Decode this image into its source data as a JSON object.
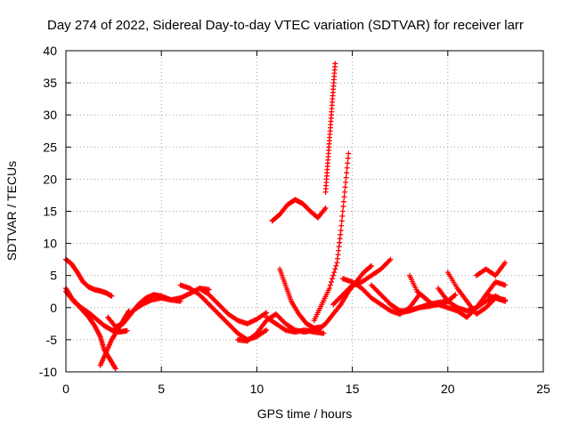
{
  "chart_data": {
    "type": "scatter",
    "title": "Day 274 of 2022, Sidereal Day-to-day VTEC variation (SDTVAR) for receiver larr",
    "xlabel": "GPS time / hours",
    "ylabel": "SDTVAR / TECUs",
    "xlim": [
      0,
      25
    ],
    "ylim": [
      -10,
      40
    ],
    "xticks": [
      "0",
      "5",
      "10",
      "15",
      "20",
      "25"
    ],
    "yticks": [
      "-10",
      "-5",
      "0",
      "5",
      "10",
      "15",
      "20",
      "25",
      "30",
      "35",
      "40"
    ],
    "grid": true,
    "marker": "+",
    "color": "#ff0000",
    "series": [
      {
        "x": [
          0,
          0.3,
          0.6,
          0.9,
          1.2,
          1.5,
          1.8,
          2.1,
          2.4
        ],
        "y": [
          7.5,
          6.8,
          5.5,
          4.0,
          3.2,
          2.8,
          2.6,
          2.3,
          1.8
        ]
      },
      {
        "x": [
          0,
          0.3,
          0.6,
          0.9,
          1.2,
          1.5,
          1.8,
          2.0,
          2.3,
          2.6
        ],
        "y": [
          3.0,
          1.5,
          0.5,
          -0.5,
          -1.5,
          -2.8,
          -4.5,
          -6.5,
          -8.0,
          -9.5
        ]
      },
      {
        "x": [
          0,
          0.4,
          0.8,
          1.2,
          1.6,
          2.0,
          2.4,
          2.8,
          3.2
        ],
        "y": [
          2.5,
          1.0,
          0,
          -0.8,
          -1.8,
          -2.8,
          -3.5,
          -3.8,
          -3.6
        ]
      },
      {
        "x": [
          1.8,
          2.1,
          2.4,
          2.7,
          3.0,
          3.3
        ],
        "y": [
          -9.0,
          -7.0,
          -5.0,
          -3.5,
          -2.0,
          -0.5
        ]
      },
      {
        "x": [
          2.2,
          2.6,
          3.0,
          3.4,
          3.8,
          4.2,
          4.6,
          5.0,
          5.5,
          6.0
        ],
        "y": [
          -1.5,
          -3.0,
          -2.5,
          -1.0,
          0.5,
          1.5,
          2.0,
          1.8,
          1.2,
          1.0
        ]
      },
      {
        "x": [
          3.5,
          4.0,
          4.5,
          5.0,
          5.5,
          6.0,
          6.5,
          7.0,
          7.5
        ],
        "y": [
          -0.5,
          0.5,
          1.2,
          1.5,
          1.2,
          1.5,
          2.2,
          3.0,
          2.8
        ]
      },
      {
        "x": [
          6.0,
          6.5,
          7.0,
          7.5,
          8.0,
          8.5,
          9.0,
          9.5,
          10.0,
          10.5
        ],
        "y": [
          3.5,
          3.0,
          2.0,
          0.5,
          -1.0,
          -2.5,
          -4.0,
          -5.0,
          -4.5,
          -3.5
        ]
      },
      {
        "x": [
          7.0,
          7.5,
          8.0,
          8.5,
          9.0,
          9.5,
          10.0,
          10.5
        ],
        "y": [
          3.0,
          2.0,
          0.5,
          -1.0,
          -2.0,
          -2.5,
          -1.8,
          -0.8
        ]
      },
      {
        "x": [
          9.0,
          9.5,
          10.0,
          10.5,
          11.0,
          11.5,
          12.0,
          12.5,
          13.0
        ],
        "y": [
          -5.0,
          -5.2,
          -4.0,
          -2.0,
          -1.0,
          -2.5,
          -3.5,
          -3.8,
          -3.5
        ]
      },
      {
        "x": [
          10.5,
          11.0,
          11.5,
          12.0,
          12.5,
          13.0,
          13.5
        ],
        "y": [
          -1.5,
          -2.5,
          -3.5,
          -3.8,
          -3.5,
          -3.8,
          -4.0
        ]
      },
      {
        "x": [
          10.8,
          11.2,
          11.6,
          12.0,
          12.4,
          12.8,
          13.2,
          13.6
        ],
        "y": [
          13.5,
          14.5,
          16.0,
          16.8,
          16.2,
          15.0,
          14.0,
          15.5
        ]
      },
      {
        "x": [
          13.6,
          13.7,
          13.8,
          13.9,
          14.0,
          14.1
        ],
        "y": [
          18.0,
          22.0,
          26.0,
          30.0,
          34.0,
          38.0
        ]
      },
      {
        "x": [
          11.2,
          11.5,
          11.8,
          12.2,
          12.6,
          13.0,
          13.4
        ],
        "y": [
          6.0,
          3.5,
          1.0,
          -1.0,
          -2.5,
          -3.2,
          -3.0
        ]
      },
      {
        "x": [
          13.0,
          13.4,
          13.8,
          14.2,
          14.4,
          14.6,
          14.8
        ],
        "y": [
          -2.0,
          0.5,
          3.0,
          7.0,
          12.0,
          18.0,
          24.0
        ]
      },
      {
        "x": [
          13.2,
          13.6,
          14.0,
          14.4,
          14.8,
          15.2,
          15.6,
          16.0
        ],
        "y": [
          -3.5,
          -2.5,
          -1.0,
          0.5,
          2.5,
          4.0,
          5.5,
          6.5
        ]
      },
      {
        "x": [
          14.0,
          14.5,
          15.0,
          15.5,
          16.0,
          16.5,
          17.0
        ],
        "y": [
          0.5,
          2.0,
          3.5,
          4.0,
          5.0,
          6.0,
          7.5
        ]
      },
      {
        "x": [
          14.5,
          15.0,
          15.5,
          16.0,
          16.5,
          17.0,
          17.5,
          18.0,
          18.5
        ],
        "y": [
          4.5,
          4.0,
          3.0,
          1.5,
          0.5,
          -0.5,
          -1.0,
          0,
          2.0
        ]
      },
      {
        "x": [
          16.0,
          16.5,
          17.0,
          17.5,
          18.0,
          18.5,
          19.0,
          19.5,
          20.0
        ],
        "y": [
          3.5,
          2.0,
          0.5,
          -0.5,
          -0.5,
          0,
          0.5,
          0.8,
          1.0
        ]
      },
      {
        "x": [
          17.5,
          18.0,
          18.5,
          19.0,
          19.5,
          20.0,
          20.5,
          21.0
        ],
        "y": [
          -0.8,
          -0.5,
          0,
          0.2,
          0.5,
          0,
          -0.5,
          -1.5
        ]
      },
      {
        "x": [
          18.0,
          18.4,
          18.8,
          19.2,
          19.6,
          20.0,
          20.4
        ],
        "y": [
          5.0,
          2.5,
          1.5,
          0.5,
          0.5,
          1.0,
          2.0
        ]
      },
      {
        "x": [
          19.5,
          20.0,
          20.5,
          21.0,
          21.5,
          22.0,
          22.5,
          23.0
        ],
        "y": [
          3.0,
          1.0,
          0,
          -0.5,
          0,
          1.0,
          1.8,
          1.0
        ]
      },
      {
        "x": [
          20.0,
          20.5,
          21.0,
          21.5,
          22.0,
          22.5,
          23.0
        ],
        "y": [
          5.5,
          3.0,
          1.0,
          -1.0,
          0,
          1.5,
          1.2
        ]
      },
      {
        "x": [
          21.0,
          21.5,
          22.0,
          22.5,
          23.0
        ],
        "y": [
          -1.5,
          0,
          2.0,
          4.0,
          3.5
        ]
      },
      {
        "x": [
          21.5,
          22.0,
          22.5,
          23.0
        ],
        "y": [
          5.0,
          6.0,
          5.0,
          7.0
        ]
      },
      {
        "x": [
          22.0,
          22.5,
          23.0
        ],
        "y": [
          2.0,
          1.5,
          1.0
        ]
      }
    ]
  }
}
